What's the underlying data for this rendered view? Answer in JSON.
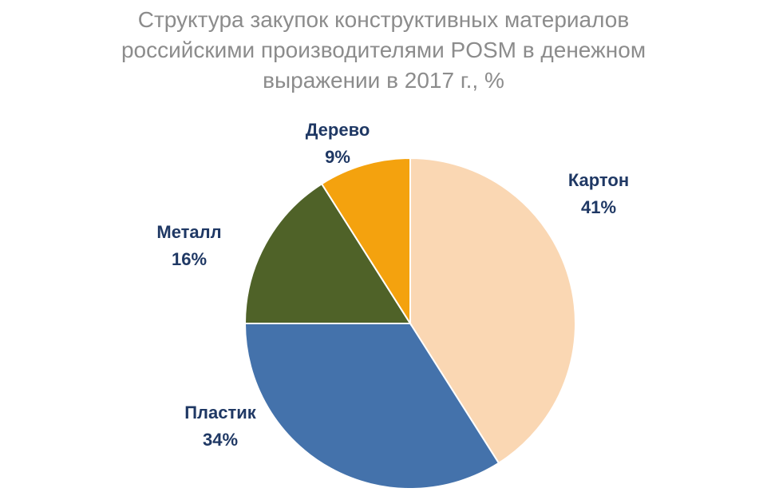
{
  "chart_data": {
    "type": "pie",
    "title_lines": [
      "Структура закупок конструктивных материалов",
      "российскими производителями POSM в денежном",
      "выражении в 2017 г., %"
    ],
    "slices": [
      {
        "label": "Картон",
        "value": 41,
        "value_label": "41%",
        "color": "#fad7b3"
      },
      {
        "label": "Пластик",
        "value": 34,
        "value_label": "34%",
        "color": "#4472ab"
      },
      {
        "label": "Металл",
        "value": 16,
        "value_label": "16%",
        "color": "#4f6228"
      },
      {
        "label": "Дерево",
        "value": 9,
        "value_label": "9%",
        "color": "#f4a20e"
      }
    ],
    "label_color": "#1f3864",
    "title_color": "#8c8c8c"
  }
}
